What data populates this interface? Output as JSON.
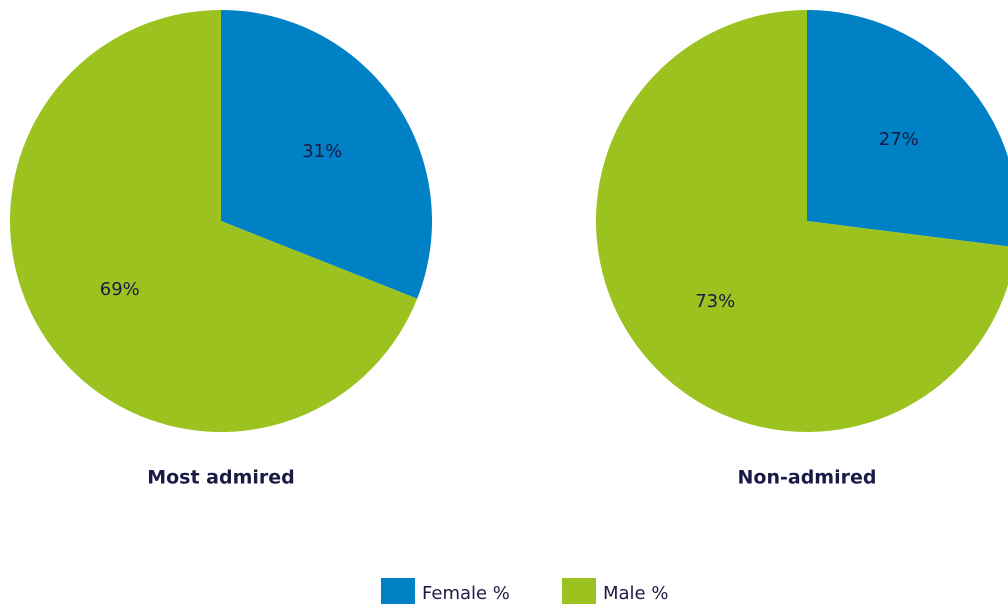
{
  "chart_data": {
    "type": "pie",
    "categories": [
      "Most admired",
      "Non-admired"
    ],
    "series": [
      {
        "name": "Female %",
        "color": "#0081c6",
        "values": [
          31,
          27
        ],
        "value_labels": [
          "31%",
          "27%"
        ]
      },
      {
        "name": "Male %",
        "color": "#9cc21f",
        "values": [
          69,
          73
        ],
        "value_labels": [
          "69%",
          "73%"
        ]
      }
    ],
    "legend": "bottom"
  }
}
